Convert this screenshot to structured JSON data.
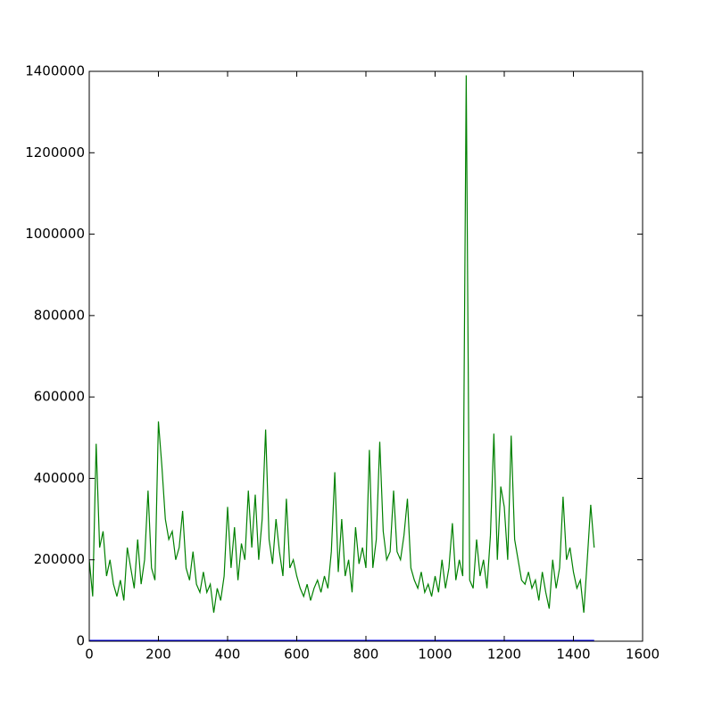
{
  "chart_data": {
    "type": "line",
    "series": [
      {
        "color": "#008000",
        "x": [
          0,
          10,
          20,
          30,
          40,
          50,
          60,
          70,
          80,
          90,
          100,
          110,
          120,
          130,
          140,
          150,
          160,
          170,
          180,
          190,
          200,
          210,
          220,
          230,
          240,
          250,
          260,
          270,
          280,
          290,
          300,
          310,
          320,
          330,
          340,
          350,
          360,
          370,
          380,
          390,
          400,
          410,
          420,
          430,
          440,
          450,
          460,
          470,
          480,
          490,
          500,
          510,
          520,
          530,
          540,
          550,
          560,
          570,
          580,
          590,
          600,
          610,
          620,
          630,
          640,
          650,
          660,
          670,
          680,
          690,
          700,
          710,
          720,
          730,
          740,
          750,
          760,
          770,
          780,
          790,
          800,
          810,
          820,
          830,
          840,
          850,
          860,
          870,
          880,
          890,
          900,
          910,
          920,
          930,
          940,
          950,
          960,
          970,
          980,
          990,
          1000,
          1010,
          1020,
          1030,
          1040,
          1050,
          1060,
          1070,
          1080,
          1090,
          1100,
          1110,
          1120,
          1130,
          1140,
          1150,
          1160,
          1170,
          1180,
          1190,
          1200,
          1210,
          1220,
          1230,
          1240,
          1250,
          1260,
          1270,
          1280,
          1290,
          1300,
          1310,
          1320,
          1330,
          1340,
          1350,
          1360,
          1370,
          1380,
          1390,
          1400,
          1410,
          1420,
          1430,
          1440,
          1450,
          1460
        ],
        "values": [
          200000,
          110000,
          485000,
          230000,
          270000,
          160000,
          200000,
          140000,
          110000,
          150000,
          100000,
          230000,
          180000,
          130000,
          250000,
          140000,
          200000,
          370000,
          180000,
          150000,
          540000,
          430000,
          300000,
          250000,
          270000,
          200000,
          230000,
          320000,
          180000,
          150000,
          220000,
          140000,
          120000,
          170000,
          120000,
          140000,
          70000,
          130000,
          100000,
          160000,
          330000,
          180000,
          280000,
          150000,
          240000,
          200000,
          370000,
          230000,
          360000,
          200000,
          300000,
          520000,
          250000,
          190000,
          300000,
          220000,
          160000,
          350000,
          180000,
          200000,
          160000,
          130000,
          110000,
          140000,
          100000,
          130000,
          150000,
          120000,
          160000,
          130000,
          220000,
          415000,
          170000,
          300000,
          160000,
          200000,
          120000,
          280000,
          190000,
          230000,
          180000,
          470000,
          180000,
          250000,
          490000,
          270000,
          200000,
          220000,
          370000,
          220000,
          200000,
          260000,
          350000,
          180000,
          150000,
          130000,
          170000,
          120000,
          140000,
          110000,
          160000,
          120000,
          200000,
          130000,
          180000,
          290000,
          150000,
          200000,
          160000,
          1390000,
          150000,
          130000,
          250000,
          160000,
          200000,
          130000,
          260000,
          510000,
          200000,
          380000,
          330000,
          200000,
          505000,
          250000,
          200000,
          150000,
          140000,
          170000,
          130000,
          150000,
          100000,
          170000,
          120000,
          80000,
          200000,
          130000,
          180000,
          355000,
          200000,
          230000,
          170000,
          130000,
          150000,
          70000,
          200000,
          335000,
          230000
        ]
      },
      {
        "color": "#0000ff",
        "x": [
          0,
          1460
        ],
        "values": [
          2000,
          2000
        ]
      }
    ],
    "xlim": [
      0,
      1600
    ],
    "xticks": [
      0,
      200,
      400,
      600,
      800,
      1000,
      1200,
      1400,
      1600
    ],
    "ylim": [
      0,
      1400000
    ],
    "yticks": [
      0,
      200000,
      400000,
      600000,
      800000,
      1000000,
      1200000,
      1400000
    ]
  }
}
